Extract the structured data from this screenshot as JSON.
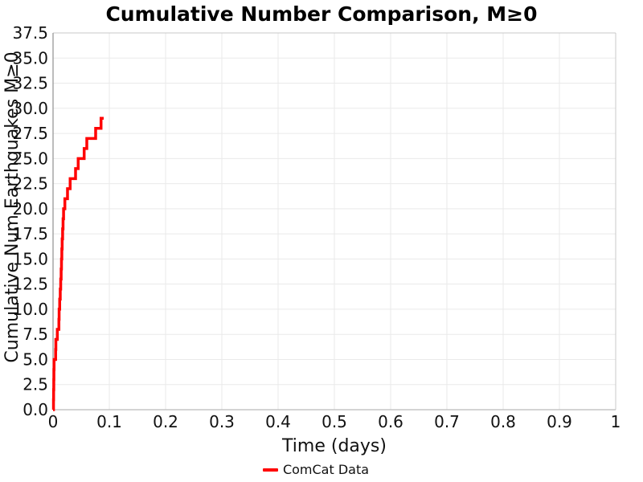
{
  "title": "Cumulative Number Comparison, M≥0",
  "axes": {
    "xlabel": "Time (days)",
    "ylabel": "Cumulative Num Earthquakes M≥0"
  },
  "legend": {
    "entries": [
      {
        "label": "ComCat Data",
        "color": "#ff0000"
      }
    ]
  },
  "colors": {
    "series": "#ff0000",
    "grid": "#eaeaea",
    "spine_left": "#909090",
    "spine_bottom": "#bbbbbb",
    "spine_top": "#c8c8c8",
    "spine_right": "#c8c8c8",
    "text": "#111111"
  },
  "chart_data": {
    "type": "line",
    "subtype": "cumulative-step",
    "title": "Cumulative Number Comparison, M≥0",
    "xlabel": "Time (days)",
    "ylabel": "Cumulative Num Earthquakes M≥0",
    "xlim": [
      0,
      1
    ],
    "ylim": [
      0,
      37.5
    ],
    "xticks": [
      0,
      0.1,
      0.2,
      0.3,
      0.4,
      0.5,
      0.6,
      0.7,
      0.8,
      0.9,
      1
    ],
    "xtick_labels": [
      "0",
      "0.1",
      "0.2",
      "0.3",
      "0.4",
      "0.5",
      "0.6",
      "0.7",
      "0.8",
      "0.9",
      "1"
    ],
    "yticks": [
      0,
      2.5,
      5,
      7.5,
      10,
      12.5,
      15,
      17.5,
      20,
      22.5,
      25,
      27.5,
      30,
      32.5,
      35,
      37.5
    ],
    "ytick_labels": [
      "0.0",
      "2.5",
      "5.0",
      "7.5",
      "10.0",
      "12.5",
      "15.0",
      "17.5",
      "20.0",
      "22.5",
      "25.0",
      "27.5",
      "30.0",
      "32.5",
      "35.0",
      "37.5"
    ],
    "grid": true,
    "legend_position": "bottom-center",
    "series": [
      {
        "name": "ComCat Data",
        "color": "#ff0000",
        "line_width": 3.5,
        "style": "step-post",
        "start": [
          0,
          0
        ],
        "event_times_days": [
          0.0008,
          0.001,
          0.0013,
          0.0015,
          0.0018,
          0.0046,
          0.005,
          0.0076,
          0.0104,
          0.0108,
          0.0118,
          0.0128,
          0.0136,
          0.0144,
          0.015,
          0.0156,
          0.0162,
          0.017,
          0.0178,
          0.0187,
          0.021,
          0.0257,
          0.0304,
          0.04,
          0.0447,
          0.0553,
          0.06,
          0.0757,
          0.0853
        ],
        "cumulative_counts": [
          1,
          2,
          3,
          4,
          5,
          6,
          7,
          8,
          9,
          10,
          11,
          12,
          13,
          14,
          15,
          16,
          17,
          18,
          19,
          20,
          21,
          22,
          23,
          24,
          25,
          26,
          27,
          28,
          29
        ],
        "end_time_days": 0.09,
        "final_count": 29
      }
    ]
  }
}
